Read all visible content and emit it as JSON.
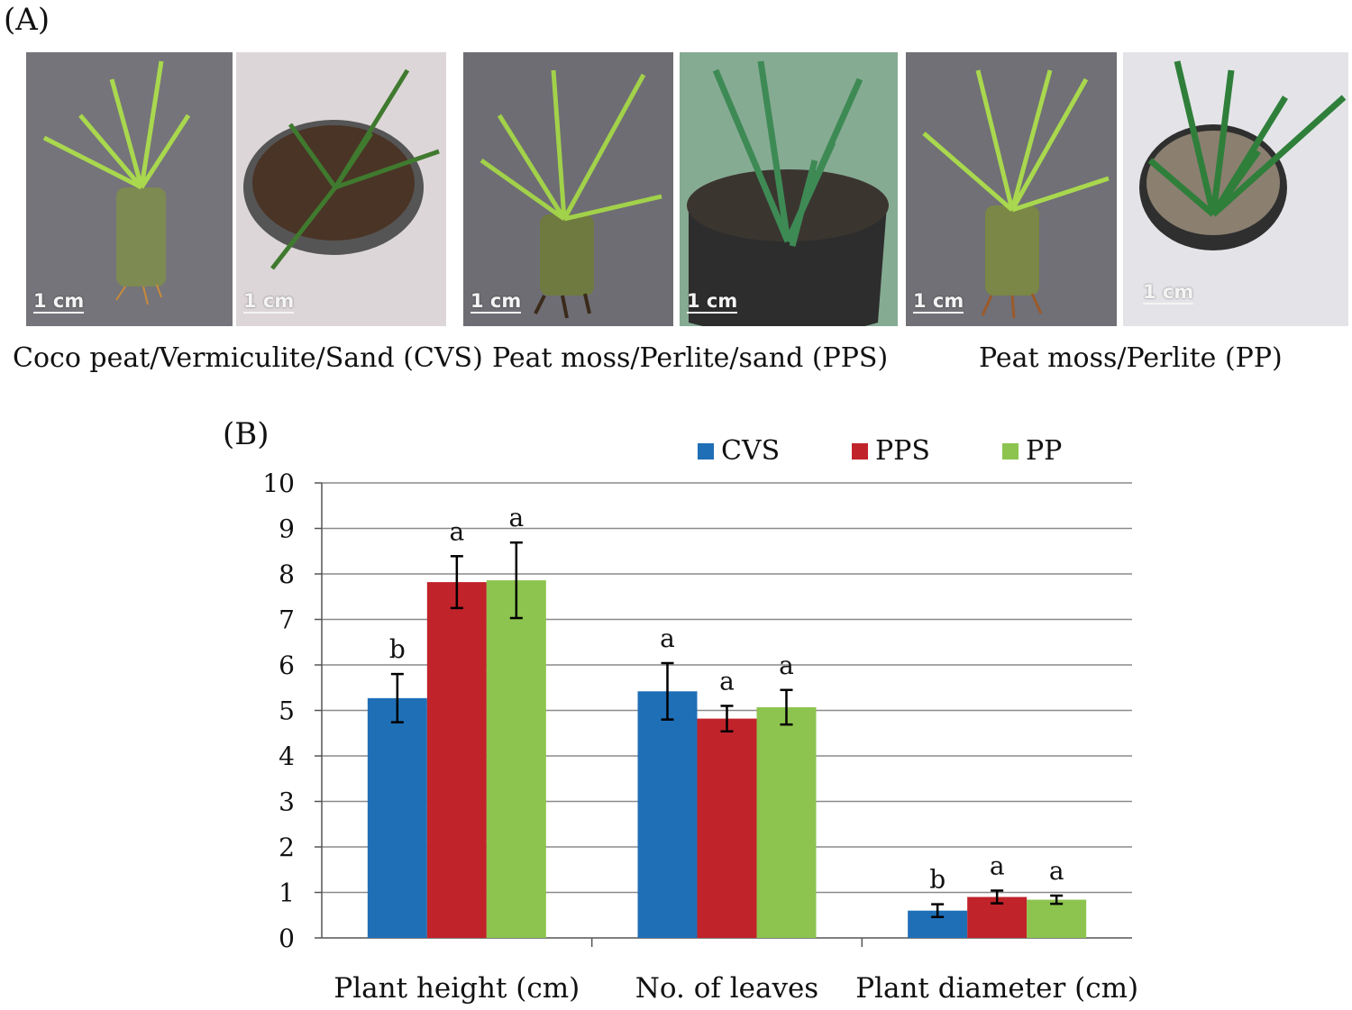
{
  "panel_a": {
    "label": "(A)",
    "scale_label": "1 cm",
    "captions": [
      "Coco peat/Vermiculite/Sand (CVS)",
      "Peat moss/Perlite/sand (PPS)",
      "Peat moss/Perlite (PP)"
    ]
  },
  "panel_b": {
    "label": "(B)"
  },
  "colors": {
    "CVS": "#1f6fb7",
    "PPS": "#c1232a",
    "PP": "#8dc44f",
    "grid": "#8a8a8a"
  },
  "chart_data": {
    "type": "bar",
    "title": "",
    "xlabel": "",
    "ylabel": "",
    "ylim": [
      0,
      10
    ],
    "yticks": [
      0,
      1,
      2,
      3,
      4,
      5,
      6,
      7,
      8,
      9,
      10
    ],
    "categories": [
      "Plant height (cm)",
      "No. of leaves",
      "Plant diameter (cm)"
    ],
    "legend_position": "top-right",
    "series": [
      {
        "name": "CVS",
        "values": [
          5.27,
          5.42,
          0.6
        ],
        "errors": [
          0.53,
          0.62,
          0.14
        ],
        "letters": [
          "b",
          "a",
          "b"
        ]
      },
      {
        "name": "PPS",
        "values": [
          7.82,
          4.82,
          0.9
        ],
        "errors": [
          0.57,
          0.28,
          0.14
        ],
        "letters": [
          "a",
          "a",
          "a"
        ]
      },
      {
        "name": "PP",
        "values": [
          7.86,
          5.07,
          0.84
        ],
        "errors": [
          0.83,
          0.38,
          0.09
        ],
        "letters": [
          "a",
          "a",
          "a"
        ]
      }
    ]
  }
}
